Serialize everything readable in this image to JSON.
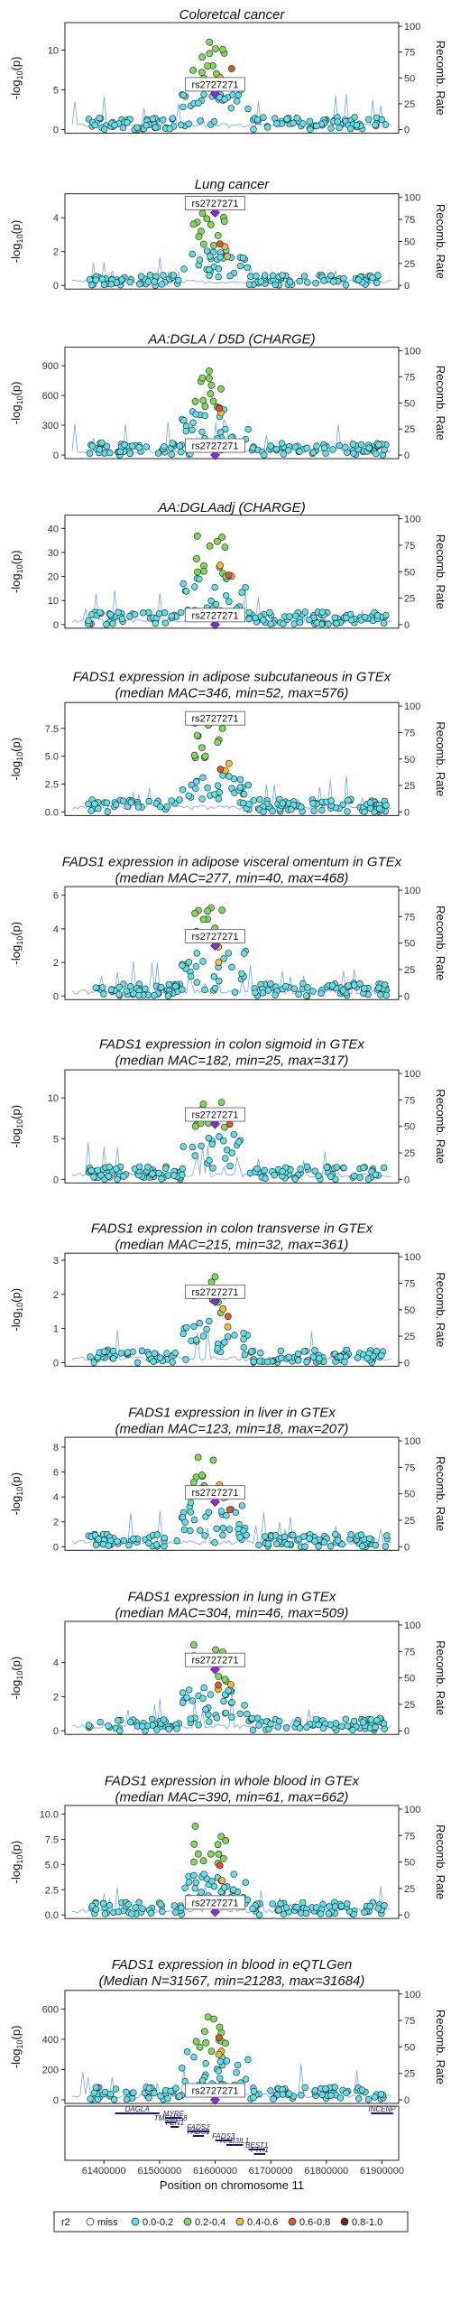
{
  "colors": {
    "miss": "#ffffff",
    "r2_0_0.2": "#5fe0e8",
    "r2_0.2_0.4": "#7ed957",
    "r2_0.4_0.6": "#f5b82e",
    "r2_0.6_0.8": "#e0552b",
    "r2_0.8_1.0": "#8b1a1a",
    "lead": "#8a2be2",
    "recomb_line": "#4a90e2",
    "gene": "#1b1b6e"
  },
  "lead_snp": "rs2727271",
  "legend": {
    "title": "r2",
    "items": [
      {
        "label": "miss",
        "color_key": "miss"
      },
      {
        "label": "0.0-0.2",
        "color_key": "r2_0_0.2"
      },
      {
        "label": "0.2-0.4",
        "color_key": "r2_0.2_0.4"
      },
      {
        "label": "0.4-0.6",
        "color_key": "r2_0.4_0.6"
      },
      {
        "label": "0.6-0.8",
        "color_key": "r2_0.6_0.8"
      },
      {
        "label": "0.8-1.0",
        "color_key": "r2_0.8_1.0"
      }
    ]
  },
  "gene_track": {
    "xlabel": "Position on chromosome 11",
    "x_ticks": [
      "61400000",
      "61500000",
      "61600000",
      "61700000",
      "61800000",
      "61900000"
    ],
    "genes": [
      "DAGLA",
      "INCENP",
      "MYRF",
      "TMEM258",
      "FEN1",
      "FADS2",
      "FADS1",
      "FADS3",
      "RAB3IL1",
      "BEST1",
      "FTH1"
    ]
  },
  "chart_data": [
    {
      "type": "scatter",
      "title": "Coloretcal cancer",
      "subtitle": "",
      "ylabel": "-log10(p)",
      "y2label": "Recomb. Rate",
      "yticks": [
        "0",
        "5",
        "10"
      ],
      "ylim": [
        0,
        13
      ],
      "lead_y": 4.5
    },
    {
      "type": "scatter",
      "title": "Lung cancer",
      "subtitle": "",
      "ylabel": "-log10(p)",
      "y2label": "Recomb. Rate",
      "yticks": [
        "0",
        "2",
        "4"
      ],
      "ylim": [
        0,
        5.2
      ],
      "lead_y": 4.3
    },
    {
      "type": "scatter",
      "title": "AA:DGLA / D5D (CHARGE)",
      "subtitle": "",
      "ylabel": "-log10(p)",
      "y2label": "Recomb. Rate",
      "yticks": [
        "0",
        "300",
        "600",
        "900"
      ],
      "ylim": [
        0,
        1050
      ],
      "lead_y": 0
    },
    {
      "type": "scatter",
      "title": "AA:DGLAadj (CHARGE)",
      "subtitle": "",
      "ylabel": "-log10(p)",
      "y2label": "Recomb. Rate",
      "yticks": [
        "0",
        "10",
        "20",
        "30",
        "40"
      ],
      "ylim": [
        0,
        44
      ],
      "lead_y": 0
    },
    {
      "type": "scatter",
      "title": "FADS1 expression in adipose subcutaneous in GTEx",
      "subtitle": "(median MAC=346, min=52, max=576)",
      "ylabel": "-log10(p)",
      "y2label": "Recomb. Rate",
      "yticks": [
        "0.0",
        "2.5",
        "5.0",
        "7.5"
      ],
      "ylim": [
        0,
        9.5
      ],
      "lead_y": 8.2
    },
    {
      "type": "scatter",
      "title": "FADS1 expression in adipose visceral omentum in GTEx",
      "subtitle": "(median MAC=277, min=40, max=468)",
      "ylabel": "-log10(p)",
      "y2label": "Recomb. Rate",
      "yticks": [
        "0",
        "2",
        "4",
        "6"
      ],
      "ylim": [
        0,
        6.3
      ],
      "lead_y": 3.0
    },
    {
      "type": "scatter",
      "title": "FADS1 expression in colon sigmoid in GTEx",
      "subtitle": "(median MAC=182, min=25, max=317)",
      "ylabel": "-log10(p)",
      "y2label": "Recomb. Rate",
      "yticks": [
        "0",
        "5",
        "10"
      ],
      "ylim": [
        0,
        13
      ],
      "lead_y": 6.8
    },
    {
      "type": "scatter",
      "title": "FADS1 expression in colon transverse in GTEx",
      "subtitle": "(median MAC=215, min=32, max=361)",
      "ylabel": "-log10(p)",
      "y2label": "Recomb. Rate",
      "yticks": [
        "0",
        "1",
        "2",
        "3"
      ],
      "ylim": [
        0,
        3.1
      ],
      "lead_y": 1.8
    },
    {
      "type": "scatter",
      "title": "FADS1 expression in liver in GTEx",
      "subtitle": "(median MAC=123, min=18, max=207)",
      "ylabel": "-log10(p)",
      "y2label": "Recomb. Rate",
      "yticks": [
        "0",
        "2",
        "4",
        "6",
        "8"
      ],
      "ylim": [
        0,
        8.5
      ],
      "lead_y": 3.6
    },
    {
      "type": "scatter",
      "title": "FADS1 expression in lung in GTEx",
      "subtitle": "(median MAC=304, min=46, max=509)",
      "ylabel": "-log10(p)",
      "y2label": "Recomb. Rate",
      "yticks": [
        "0",
        "2",
        "4"
      ],
      "ylim": [
        0,
        6.2
      ],
      "lead_y": 3.6
    },
    {
      "type": "scatter",
      "title": "FADS1 expression in whole blood in GTEx",
      "subtitle": "(median MAC=390, min=61, max=662)",
      "ylabel": "-log10(p)",
      "y2label": "Recomb. Rate",
      "yticks": [
        "0.0",
        "2.5",
        "5.0",
        "7.5",
        "10.0"
      ],
      "ylim": [
        0,
        10.5
      ],
      "lead_y": 0.3
    },
    {
      "type": "scatter",
      "title": "FADS1 expression in blood in eQTLGen",
      "subtitle": "(Median N=31567, min=21283, max=31684)",
      "ylabel": "-log10(p)",
      "y2label": "Recomb. Rate",
      "yticks": [
        "0",
        "200",
        "400",
        "600"
      ],
      "ylim": [
        0,
        700
      ],
      "lead_y": 0
    }
  ],
  "recomb_ticks": [
    "0",
    "25",
    "50",
    "75",
    "100"
  ]
}
